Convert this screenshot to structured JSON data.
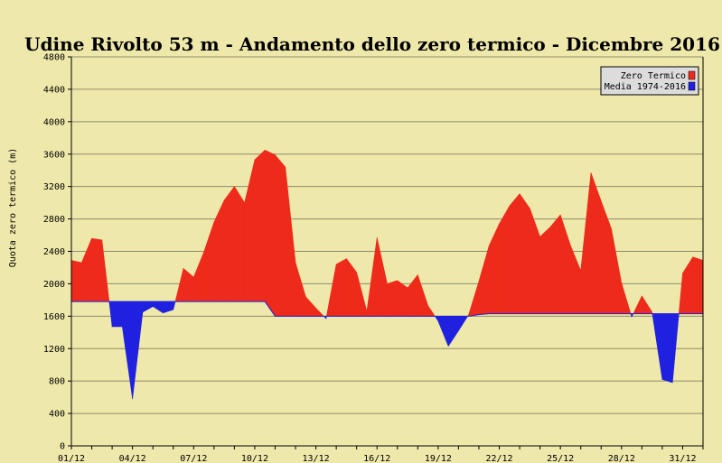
{
  "chart_data": {
    "type": "area",
    "title": "Udine Rivolto 53 m - Andamento dello zero termico - Dicembre 2016",
    "xlabel": "",
    "ylabel": "Quota zero termico (m)",
    "ylim": [
      0,
      4800
    ],
    "yticks": [
      0,
      400,
      800,
      1200,
      1600,
      2000,
      2400,
      2800,
      3200,
      3600,
      4000,
      4400,
      4800
    ],
    "xlim": [
      1,
      32
    ],
    "xticks": [
      {
        "x": 1,
        "label": "01/12"
      },
      {
        "x": 4,
        "label": "04/12"
      },
      {
        "x": 7,
        "label": "07/12"
      },
      {
        "x": 10,
        "label": "10/12"
      },
      {
        "x": 13,
        "label": "13/12"
      },
      {
        "x": 16,
        "label": "16/12"
      },
      {
        "x": 19,
        "label": "19/12"
      },
      {
        "x": 22,
        "label": "22/12"
      },
      {
        "x": 25,
        "label": "25/12"
      },
      {
        "x": 28,
        "label": "28/12"
      },
      {
        "x": 31,
        "label": "31/12"
      }
    ],
    "grid": true,
    "legend": "top-right",
    "series": [
      {
        "name": "Zero Termico",
        "color": "#EE2A1A",
        "x": [
          1,
          1.5,
          2,
          2.5,
          3,
          3.5,
          4,
          4.5,
          5,
          5.5,
          6,
          6.5,
          7,
          7.5,
          8,
          8.5,
          9,
          9.5,
          10,
          10.5,
          11,
          11.5,
          12,
          12.5,
          13,
          13.5,
          14,
          14.5,
          15,
          15.5,
          16,
          16.5,
          17,
          17.5,
          18,
          18.5,
          19,
          19.5,
          20,
          20.5,
          21,
          21.5,
          22,
          22.5,
          23,
          23.5,
          24,
          24.5,
          25,
          25.5,
          26,
          26.5,
          27,
          27.5,
          28,
          28.5,
          29,
          29.5,
          30,
          30.5,
          31,
          31.5,
          32
        ],
        "values": [
          2290,
          2260,
          2560,
          2540,
          1470,
          1470,
          580,
          1650,
          1720,
          1640,
          1680,
          2190,
          2080,
          2390,
          2760,
          3030,
          3200,
          3000,
          3530,
          3650,
          3590,
          3440,
          2260,
          1840,
          1700,
          1570,
          2240,
          2310,
          2140,
          1660,
          2570,
          2000,
          2040,
          1950,
          2110,
          1730,
          1540,
          1230,
          1420,
          1620,
          2030,
          2470,
          2740,
          2960,
          3110,
          2930,
          2580,
          2700,
          2850,
          2470,
          2160,
          3370,
          3020,
          2680,
          2010,
          1590,
          1850,
          1650,
          820,
          780,
          2130,
          2330,
          2290
        ]
      },
      {
        "name": "Media 1974-2016",
        "color": "#2020E0",
        "x": [
          1,
          1.5,
          2,
          2.5,
          3,
          3.5,
          4,
          4.5,
          5,
          5.5,
          6,
          6.5,
          7,
          7.5,
          8,
          8.5,
          9,
          9.5,
          10,
          10.5,
          11,
          11.5,
          12,
          12.5,
          13,
          13.5,
          14,
          14.5,
          15,
          15.5,
          16,
          16.5,
          17,
          17.5,
          18,
          18.5,
          19,
          19.5,
          20,
          20.5,
          21,
          21.5,
          22,
          22.5,
          23,
          23.5,
          24,
          24.5,
          25,
          25.5,
          26,
          26.5,
          27,
          27.5,
          28,
          28.5,
          29,
          29.5,
          30,
          30.5,
          31,
          31.5,
          32
        ],
        "values": [
          1780,
          1780,
          1780,
          1780,
          1780,
          1780,
          1780,
          1780,
          1780,
          1780,
          1780,
          1780,
          1780,
          1780,
          1780,
          1780,
          1780,
          1780,
          1780,
          1780,
          1600,
          1600,
          1600,
          1600,
          1600,
          1600,
          1600,
          1600,
          1600,
          1600,
          1600,
          1600,
          1600,
          1600,
          1600,
          1600,
          1600,
          1600,
          1600,
          1600,
          1620,
          1630,
          1630,
          1630,
          1630,
          1630,
          1630,
          1630,
          1630,
          1630,
          1630,
          1630,
          1630,
          1630,
          1630,
          1630,
          1630,
          1630,
          1630,
          1630,
          1630,
          1630,
          1630
        ]
      }
    ]
  }
}
